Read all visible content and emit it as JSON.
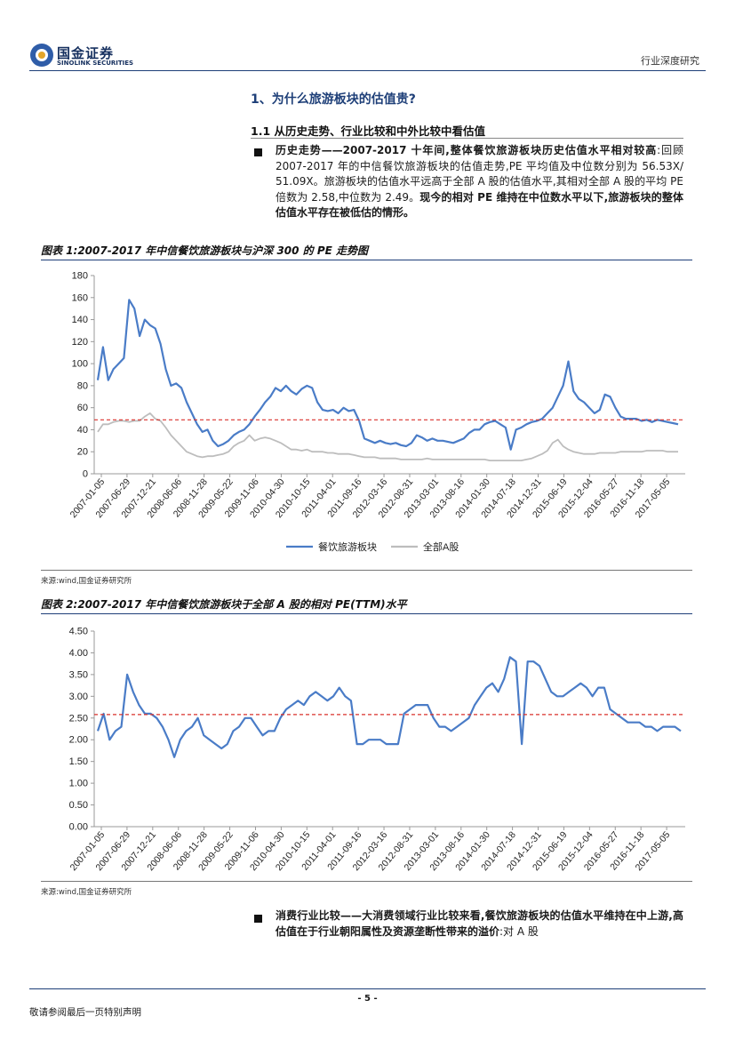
{
  "header": {
    "brand_cn": "国金证券",
    "brand_en": "SINOLINK SECURITIES",
    "report_type": "行业深度研究"
  },
  "section_title": "1、为什么旅游板块的估值贵?",
  "subsection_title": "1.1 从历史走势、行业比较和中外比较中看估值",
  "paragraph1": {
    "lead": "历史走势——2007-2017 十年间,整体餐饮旅游板块历史估值水平相对较高",
    "body": ":回顾 2007-2017 年的中信餐饮旅游板块的估值走势,PE 平均值及中位数分别为 56.53X/ 51.09X。旅游板块的估值水平远高于全部 A 股的估值水平,其相对全部 A 股的平均 PE 倍数为 2.58,中位数为 2.49。",
    "tail": "现今的相对 PE 维持在中位数水平以下,旅游板块的整体估值水平存在被低估的情形。"
  },
  "figure1": {
    "title": "图表 1:2007-2017 年中信餐饮旅游板块与沪深 300 的 PE 走势图",
    "source": "来源:wind,国金证券研究所"
  },
  "figure2": {
    "title": "图表 2:2007-2017 年中信餐饮旅游板块于全部 A 股的相对 PE(TTM)水平",
    "source": "来源:wind,国金证券研究所"
  },
  "paragraph2": {
    "lead": "消费行业比较——大消费领域行业比较来看,餐饮旅游板块的估值水平维持在中上游,高估值在于行业朝阳属性及资源垄断性带来的溢价",
    "body": ":对 A 股"
  },
  "footer": {
    "page_number": "- 5 -",
    "note": "敬请参阅最后一页特别声明"
  },
  "chart_data": [
    {
      "type": "line",
      "ylim": [
        0,
        180
      ],
      "yticks": [
        "0",
        "20",
        "40",
        "60",
        "80",
        "100",
        "120",
        "140",
        "160",
        "180"
      ],
      "x_tick_labels": [
        "2007-01-05",
        "2007-06-29",
        "2007-12-21",
        "2008-06-06",
        "2008-11-28",
        "2009-05-22",
        "2009-11-06",
        "2010-04-30",
        "2010-10-15",
        "2011-04-01",
        "2011-09-16",
        "2012-03-16",
        "2012-08-31",
        "2013-03-01",
        "2013-08-16",
        "2014-01-30",
        "2014-07-18",
        "2014-12-31",
        "2015-06-19",
        "2015-12-04",
        "2016-05-27",
        "2016-11-18",
        "2017-05-05"
      ],
      "legend": "bottom",
      "reference_line": {
        "value": 49,
        "color": "#d9312b",
        "style": "dashed"
      },
      "series": [
        {
          "name": "餐饮旅游板块",
          "color": "#4a7cc7",
          "values": [
            85,
            115,
            85,
            95,
            100,
            105,
            158,
            150,
            125,
            140,
            135,
            132,
            118,
            95,
            80,
            82,
            78,
            65,
            55,
            45,
            38,
            40,
            30,
            25,
            27,
            30,
            35,
            38,
            40,
            45,
            52,
            58,
            65,
            70,
            78,
            75,
            80,
            75,
            72,
            77,
            80,
            78,
            65,
            58,
            57,
            58,
            55,
            60,
            57,
            58,
            48,
            32,
            30,
            28,
            30,
            28,
            27,
            28,
            26,
            25,
            28,
            35,
            33,
            30,
            32,
            30,
            30,
            29,
            28,
            30,
            32,
            37,
            40,
            40,
            45,
            47,
            48,
            45,
            42,
            22,
            40,
            42,
            45,
            47,
            48,
            50,
            55,
            60,
            70,
            80,
            102,
            75,
            68,
            65,
            60,
            55,
            58,
            72,
            70,
            60,
            52,
            50,
            50,
            50,
            48,
            49,
            47,
            49,
            48,
            47,
            46,
            45
          ]
        },
        {
          "name": "全部A股",
          "color": "#bdbdbd",
          "values": [
            38,
            45,
            45,
            47,
            48,
            48,
            47,
            48,
            48,
            52,
            55,
            50,
            48,
            42,
            35,
            30,
            25,
            20,
            18,
            16,
            15,
            16,
            16,
            17,
            18,
            20,
            25,
            28,
            30,
            35,
            30,
            32,
            33,
            32,
            30,
            28,
            25,
            22,
            22,
            21,
            22,
            20,
            20,
            20,
            19,
            19,
            18,
            18,
            18,
            17,
            16,
            15,
            15,
            15,
            14,
            14,
            14,
            14,
            13,
            13,
            13,
            13,
            13,
            14,
            13,
            13,
            13,
            13,
            13,
            13,
            13,
            13,
            13,
            13,
            13,
            12,
            12,
            12,
            12,
            12,
            12,
            12,
            13,
            14,
            16,
            18,
            21,
            28,
            31,
            25,
            22,
            20,
            19,
            18,
            18,
            18,
            19,
            19,
            19,
            19,
            20,
            20,
            20,
            20,
            20,
            21,
            21,
            21,
            21,
            20,
            20,
            20
          ]
        }
      ]
    },
    {
      "type": "line",
      "ylim": [
        0,
        4.5
      ],
      "yticks": [
        "0.00",
        "0.50",
        "1.00",
        "1.50",
        "2.00",
        "2.50",
        "3.00",
        "3.50",
        "4.00",
        "4.50"
      ],
      "x_tick_labels": [
        "2007-01-05",
        "2007-06-29",
        "2007-12-21",
        "2008-06-06",
        "2008-11-28",
        "2009-05-22",
        "2009-11-06",
        "2010-04-30",
        "2010-10-15",
        "2011-04-01",
        "2011-09-16",
        "2012-03-16",
        "2012-08-31",
        "2013-03-01",
        "2013-08-16",
        "2014-01-30",
        "2014-07-18",
        "2014-12-31",
        "2015-06-19",
        "2015-12-04",
        "2016-05-27",
        "2016-11-18",
        "2017-05-05"
      ],
      "reference_line": {
        "value": 2.58,
        "color": "#d9312b",
        "style": "dashed"
      },
      "series": [
        {
          "color": "#4a7cc7",
          "values": [
            2.2,
            2.6,
            2.0,
            2.2,
            2.3,
            3.5,
            3.1,
            2.8,
            2.6,
            2.6,
            2.5,
            2.3,
            2.0,
            1.6,
            2.0,
            2.2,
            2.3,
            2.5,
            2.1,
            2.0,
            1.9,
            1.8,
            1.9,
            2.2,
            2.3,
            2.5,
            2.5,
            2.3,
            2.1,
            2.2,
            2.2,
            2.5,
            2.7,
            2.8,
            2.9,
            2.8,
            3.0,
            3.1,
            3.0,
            2.9,
            3.0,
            3.2,
            3.0,
            2.9,
            1.9,
            1.9,
            2.0,
            2.0,
            2.0,
            1.9,
            1.9,
            1.9,
            2.6,
            2.7,
            2.8,
            2.8,
            2.8,
            2.5,
            2.3,
            2.3,
            2.2,
            2.3,
            2.4,
            2.5,
            2.8,
            3.0,
            3.2,
            3.3,
            3.1,
            3.4,
            3.9,
            3.8,
            1.9,
            3.8,
            3.8,
            3.7,
            3.4,
            3.1,
            3.0,
            3.0,
            3.1,
            3.2,
            3.3,
            3.2,
            3.0,
            3.2,
            3.2,
            2.7,
            2.6,
            2.5,
            2.4,
            2.4,
            2.4,
            2.3,
            2.3,
            2.2,
            2.3,
            2.3,
            2.3,
            2.2
          ]
        }
      ]
    }
  ]
}
